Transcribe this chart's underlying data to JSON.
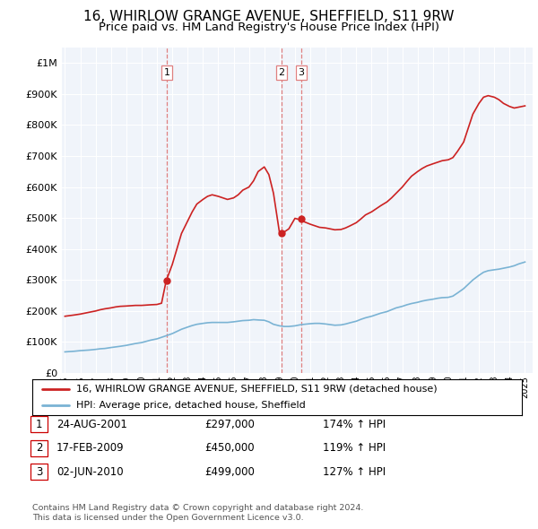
{
  "title": "16, WHIRLOW GRANGE AVENUE, SHEFFIELD, S11 9RW",
  "subtitle": "Price paid vs. HM Land Registry's House Price Index (HPI)",
  "title_fontsize": 11,
  "subtitle_fontsize": 9.5,
  "legend_line1": "16, WHIRLOW GRANGE AVENUE, SHEFFIELD, S11 9RW (detached house)",
  "legend_line2": "HPI: Average price, detached house, Sheffield",
  "footer1": "Contains HM Land Registry data © Crown copyright and database right 2024.",
  "footer2": "This data is licensed under the Open Government Licence v3.0.",
  "transactions": [
    {
      "num": 1,
      "date": "24-AUG-2001",
      "price": 297000,
      "pct": "174%",
      "x": 2001.65
    },
    {
      "num": 2,
      "date": "17-FEB-2009",
      "price": 450000,
      "pct": "119%",
      "x": 2009.12
    },
    {
      "num": 3,
      "date": "02-JUN-2010",
      "price": 499000,
      "pct": "127%",
      "x": 2010.42
    }
  ],
  "hpi_color": "#7ab3d4",
  "price_color": "#cc2222",
  "vline_color": "#e08080",
  "point_color": "#cc2222",
  "ylim_max": 1050000,
  "xlim_start": 1994.8,
  "xlim_end": 2025.5,
  "hpi_x": [
    1995.0,
    1995.3,
    1995.6,
    1996.0,
    1996.3,
    1996.6,
    1997.0,
    1997.3,
    1997.6,
    1998.0,
    1998.3,
    1998.6,
    1999.0,
    1999.3,
    1999.6,
    2000.0,
    2000.3,
    2000.6,
    2001.0,
    2001.3,
    2001.6,
    2002.0,
    2002.3,
    2002.6,
    2003.0,
    2003.3,
    2003.6,
    2004.0,
    2004.3,
    2004.6,
    2005.0,
    2005.3,
    2005.6,
    2006.0,
    2006.3,
    2006.6,
    2007.0,
    2007.3,
    2007.6,
    2008.0,
    2008.3,
    2008.6,
    2009.0,
    2009.3,
    2009.6,
    2010.0,
    2010.3,
    2010.6,
    2011.0,
    2011.3,
    2011.6,
    2012.0,
    2012.3,
    2012.6,
    2013.0,
    2013.3,
    2013.6,
    2014.0,
    2014.3,
    2014.6,
    2015.0,
    2015.3,
    2015.6,
    2016.0,
    2016.3,
    2016.6,
    2017.0,
    2017.3,
    2017.6,
    2018.0,
    2018.3,
    2018.6,
    2019.0,
    2019.3,
    2019.6,
    2020.0,
    2020.3,
    2020.6,
    2021.0,
    2021.3,
    2021.6,
    2022.0,
    2022.3,
    2022.6,
    2023.0,
    2023.3,
    2023.6,
    2024.0,
    2024.3,
    2024.6,
    2025.0
  ],
  "hpi_y": [
    68000,
    69000,
    70000,
    72000,
    73000,
    74000,
    76000,
    78000,
    79000,
    82000,
    84000,
    86000,
    89000,
    92000,
    95000,
    98000,
    102000,
    106000,
    110000,
    115000,
    120000,
    127000,
    134000,
    141000,
    148000,
    153000,
    157000,
    160000,
    162000,
    163000,
    163000,
    163000,
    163000,
    165000,
    167000,
    169000,
    170000,
    172000,
    171000,
    170000,
    165000,
    157000,
    152000,
    150000,
    150000,
    152000,
    155000,
    157000,
    159000,
    160000,
    160000,
    158000,
    156000,
    154000,
    155000,
    158000,
    162000,
    167000,
    173000,
    178000,
    183000,
    188000,
    193000,
    198000,
    204000,
    210000,
    215000,
    220000,
    224000,
    228000,
    232000,
    235000,
    238000,
    241000,
    243000,
    244000,
    248000,
    258000,
    272000,
    286000,
    300000,
    315000,
    325000,
    330000,
    333000,
    335000,
    338000,
    342000,
    346000,
    352000,
    358000
  ],
  "price_x": [
    1995.0,
    1995.3,
    1995.6,
    1996.0,
    1996.3,
    1996.6,
    1997.0,
    1997.3,
    1997.6,
    1998.0,
    1998.3,
    1998.6,
    1999.0,
    1999.3,
    1999.6,
    2000.0,
    2000.3,
    2000.6,
    2001.0,
    2001.3,
    2001.6,
    2002.0,
    2002.3,
    2002.6,
    2003.0,
    2003.3,
    2003.6,
    2004.0,
    2004.3,
    2004.6,
    2005.0,
    2005.3,
    2005.6,
    2006.0,
    2006.3,
    2006.6,
    2007.0,
    2007.3,
    2007.6,
    2008.0,
    2008.3,
    2008.6,
    2009.0,
    2009.3,
    2009.6,
    2010.0,
    2010.3,
    2010.6,
    2011.0,
    2011.3,
    2011.6,
    2012.0,
    2012.3,
    2012.6,
    2013.0,
    2013.3,
    2013.6,
    2014.0,
    2014.3,
    2014.6,
    2015.0,
    2015.3,
    2015.6,
    2016.0,
    2016.3,
    2016.6,
    2017.0,
    2017.3,
    2017.6,
    2018.0,
    2018.3,
    2018.6,
    2019.0,
    2019.3,
    2019.6,
    2020.0,
    2020.3,
    2020.6,
    2021.0,
    2021.3,
    2021.6,
    2022.0,
    2022.3,
    2022.6,
    2023.0,
    2023.3,
    2023.6,
    2024.0,
    2024.3,
    2024.6,
    2025.0
  ],
  "price_y": [
    183000,
    185000,
    187000,
    190000,
    193000,
    196000,
    200000,
    204000,
    207000,
    210000,
    213000,
    215000,
    216000,
    217000,
    218000,
    218000,
    219000,
    220000,
    221000,
    225000,
    297000,
    350000,
    400000,
    450000,
    490000,
    520000,
    545000,
    560000,
    570000,
    575000,
    570000,
    565000,
    560000,
    565000,
    575000,
    590000,
    600000,
    620000,
    650000,
    665000,
    640000,
    580000,
    450000,
    455000,
    465000,
    499000,
    495000,
    488000,
    480000,
    475000,
    470000,
    468000,
    465000,
    462000,
    463000,
    468000,
    475000,
    485000,
    497000,
    510000,
    520000,
    530000,
    540000,
    552000,
    565000,
    580000,
    600000,
    618000,
    635000,
    650000,
    660000,
    668000,
    675000,
    680000,
    685000,
    688000,
    695000,
    715000,
    745000,
    790000,
    835000,
    870000,
    890000,
    895000,
    890000,
    882000,
    870000,
    860000,
    855000,
    858000,
    862000
  ]
}
